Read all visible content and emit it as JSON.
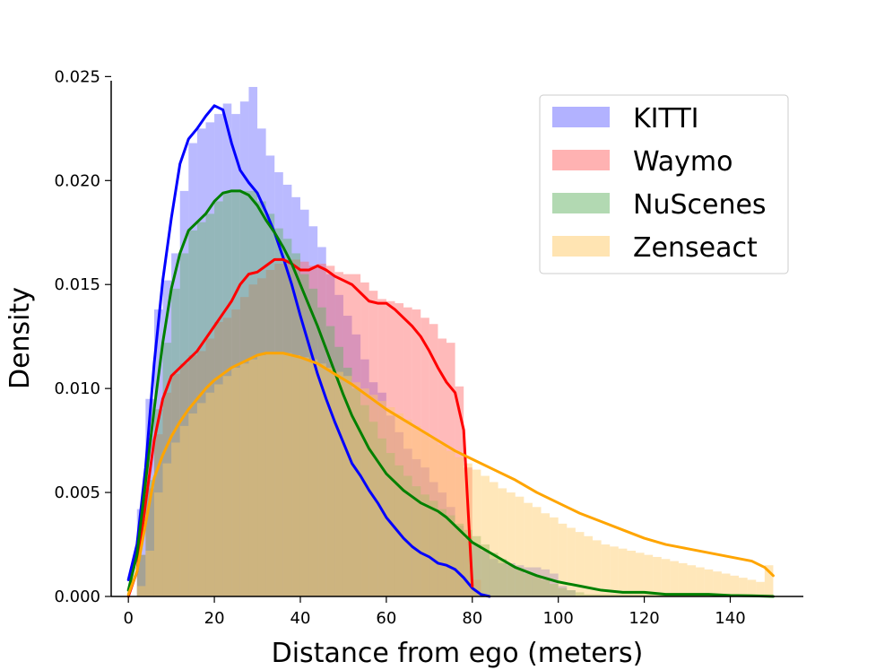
{
  "chart_data": {
    "type": "histogram-kde",
    "title": "",
    "xlabel": "Distance from ego (meters)",
    "ylabel": "Density",
    "xlim": [
      -4,
      157
    ],
    "ylim": [
      0,
      0.0248
    ],
    "x_ticks": [
      0,
      20,
      40,
      60,
      80,
      100,
      120,
      140
    ],
    "x_tick_labels": [
      "0",
      "20",
      "40",
      "60",
      "80",
      "100",
      "120",
      "140"
    ],
    "y_ticks": [
      0.0,
      0.005,
      0.01,
      0.015,
      0.02,
      0.025
    ],
    "y_tick_labels": [
      "0.000",
      "0.005",
      "0.010",
      "0.015",
      "0.020",
      "0.025"
    ],
    "grid": false,
    "legend_position": "top-right",
    "series": [
      {
        "name": "KITTI",
        "color": "#0000ff",
        "fill_color": "#6666ff",
        "hist_bins": {
          "start": 0,
          "width": 2,
          "values": [
            0.0,
            0.0042,
            0.0095,
            0.0138,
            0.0152,
            0.0165,
            0.0195,
            0.0218,
            0.0225,
            0.0228,
            0.0232,
            0.0237,
            0.0232,
            0.0238,
            0.0245,
            0.0225,
            0.0212,
            0.0204,
            0.0198,
            0.0192,
            0.0186,
            0.0178,
            0.0168,
            0.0155,
            0.0145,
            0.0135,
            0.0126,
            0.0114,
            0.0103,
            0.0098,
            0.0087,
            0.0079,
            0.0071,
            0.0066,
            0.0062,
            0.0055,
            0.005,
            0.0043,
            0.0034,
            0.0028,
            0.0025,
            0.0022,
            0.0018,
            0.0016,
            0.0016,
            0.0015,
            0.0014,
            0.0014,
            0.0013,
            0.0011,
            0.0005,
            0.0003
          ]
        },
        "kde": {
          "x": [
            0,
            2,
            4,
            6,
            8,
            10,
            12,
            14,
            16,
            18,
            20,
            22,
            24,
            26,
            28,
            30,
            32,
            34,
            36,
            38,
            40,
            42,
            44,
            46,
            48,
            50,
            52,
            54,
            56,
            58,
            60,
            62,
            64,
            66,
            68,
            70,
            72,
            74,
            76,
            78,
            80,
            82,
            84
          ],
          "y": [
            0.0008,
            0.0025,
            0.0062,
            0.0112,
            0.0152,
            0.0182,
            0.0208,
            0.022,
            0.0225,
            0.0231,
            0.0236,
            0.0234,
            0.0218,
            0.0205,
            0.0199,
            0.0194,
            0.0185,
            0.0175,
            0.0163,
            0.015,
            0.0135,
            0.0121,
            0.0107,
            0.0095,
            0.0084,
            0.0074,
            0.0064,
            0.0058,
            0.0051,
            0.0045,
            0.0038,
            0.0033,
            0.0028,
            0.0024,
            0.0021,
            0.0019,
            0.0016,
            0.0015,
            0.0013,
            0.0009,
            0.0004,
            0.0001,
            0.0
          ]
        }
      },
      {
        "name": "Waymo",
        "color": "#ff0000",
        "fill_color": "#ff6666",
        "hist_bins": {
          "start": 0,
          "width": 2,
          "values": [
            0.0,
            0.002,
            0.0052,
            0.0078,
            0.0098,
            0.0107,
            0.0112,
            0.0116,
            0.0118,
            0.0124,
            0.0132,
            0.0134,
            0.0138,
            0.0144,
            0.015,
            0.0153,
            0.0157,
            0.016,
            0.016,
            0.0162,
            0.0161,
            0.0159,
            0.016,
            0.0159,
            0.0156,
            0.0155,
            0.0155,
            0.0151,
            0.0147,
            0.0143,
            0.0142,
            0.0141,
            0.0139,
            0.0138,
            0.0134,
            0.0131,
            0.0124,
            0.0122,
            0.0101,
            0.0062,
            0.0008
          ]
        },
        "kde": {
          "x": [
            0,
            2,
            4,
            6,
            8,
            10,
            12,
            14,
            16,
            18,
            20,
            22,
            24,
            26,
            28,
            30,
            32,
            34,
            36,
            38,
            40,
            42,
            44,
            46,
            48,
            50,
            52,
            54,
            56,
            58,
            60,
            62,
            64,
            66,
            68,
            70,
            72,
            74,
            76,
            78,
            80
          ],
          "y": [
            0.0,
            0.0012,
            0.0045,
            0.0075,
            0.0095,
            0.0106,
            0.011,
            0.0114,
            0.0118,
            0.0124,
            0.013,
            0.0136,
            0.0142,
            0.015,
            0.0155,
            0.0156,
            0.0159,
            0.0162,
            0.0162,
            0.016,
            0.0157,
            0.0157,
            0.0159,
            0.0157,
            0.0154,
            0.0152,
            0.015,
            0.0146,
            0.0142,
            0.0141,
            0.0141,
            0.0138,
            0.0134,
            0.013,
            0.0125,
            0.0118,
            0.011,
            0.0103,
            0.0098,
            0.008,
            0.0005
          ]
        }
      },
      {
        "name": "NuScenes",
        "color": "#008000",
        "fill_color": "#66b366",
        "hist_bins": {
          "start": 0,
          "width": 2,
          "values": [
            0.0,
            0.002,
            0.0056,
            0.009,
            0.0122,
            0.0148,
            0.0165,
            0.0176,
            0.018,
            0.0184,
            0.019,
            0.0194,
            0.0195,
            0.0195,
            0.0195,
            0.019,
            0.0184,
            0.0177,
            0.0172,
            0.0165,
            0.0155,
            0.0148,
            0.0139,
            0.013,
            0.012,
            0.011,
            0.01,
            0.0092,
            0.0084,
            0.0076,
            0.0069,
            0.0063,
            0.0058,
            0.0053,
            0.0049,
            0.0046,
            0.0042,
            0.0039,
            0.0035,
            0.0032,
            0.0029,
            0.0025,
            0.0021,
            0.0018,
            0.0015,
            0.0013,
            0.0011,
            0.001,
            0.0008,
            0.0006,
            0.0004,
            0.0003,
            0.0002,
            0.0001,
            0.0001,
            0.0001,
            0.0001,
            0.0001,
            0.0001,
            0.0001,
            0.0001,
            0.0001,
            0.0001,
            0.0001,
            0.0001,
            0.0001,
            0.0001,
            0.0001,
            0.0001,
            0.0001,
            0.0001,
            0.0001,
            0.0001,
            0.0001,
            0.0001
          ]
        },
        "kde": {
          "x": [
            0,
            2,
            4,
            6,
            8,
            10,
            12,
            14,
            16,
            18,
            20,
            22,
            24,
            26,
            28,
            30,
            32,
            34,
            36,
            38,
            40,
            42,
            44,
            46,
            48,
            50,
            52,
            54,
            56,
            58,
            60,
            62,
            64,
            66,
            68,
            70,
            72,
            74,
            76,
            78,
            80,
            85,
            90,
            95,
            100,
            105,
            110,
            115,
            120,
            125,
            130,
            135,
            140,
            145,
            150
          ],
          "y": [
            0.0003,
            0.002,
            0.0055,
            0.009,
            0.0122,
            0.0148,
            0.0165,
            0.0176,
            0.018,
            0.0184,
            0.019,
            0.0194,
            0.0195,
            0.0195,
            0.0193,
            0.0188,
            0.0181,
            0.0175,
            0.0168,
            0.016,
            0.015,
            0.014,
            0.013,
            0.0119,
            0.0108,
            0.0097,
            0.0087,
            0.0079,
            0.0071,
            0.0065,
            0.0059,
            0.0055,
            0.0051,
            0.0048,
            0.0045,
            0.0043,
            0.0041,
            0.0038,
            0.0034,
            0.003,
            0.0026,
            0.002,
            0.0014,
            0.001,
            0.0007,
            0.0005,
            0.0003,
            0.0002,
            0.0002,
            0.0001,
            0.0001,
            0.0001,
            5e-05,
            3e-05,
            0.0
          ]
        }
      },
      {
        "name": "Zenseact",
        "color": "#ffa500",
        "fill_color": "#ffc966",
        "hist_bins": {
          "start": 0,
          "width": 2,
          "values": [
            0.0,
            0.0005,
            0.0022,
            0.005,
            0.0064,
            0.0074,
            0.0082,
            0.0088,
            0.0093,
            0.0098,
            0.0102,
            0.0106,
            0.011,
            0.0112,
            0.0114,
            0.0116,
            0.0117,
            0.0117,
            0.0117,
            0.0116,
            0.0115,
            0.0114,
            0.0112,
            0.011,
            0.0108,
            0.0106,
            0.0103,
            0.01,
            0.0097,
            0.0094,
            0.0091,
            0.0088,
            0.0085,
            0.0082,
            0.0079,
            0.0076,
            0.0073,
            0.007,
            0.0067,
            0.0064,
            0.0061,
            0.0058,
            0.0055,
            0.0052,
            0.005,
            0.0048,
            0.0045,
            0.0043,
            0.004,
            0.0038,
            0.0035,
            0.0033,
            0.0031,
            0.0029,
            0.0027,
            0.0025,
            0.0024,
            0.0023,
            0.0022,
            0.0021,
            0.002,
            0.0019,
            0.0018,
            0.0017,
            0.0016,
            0.0015,
            0.0014,
            0.0013,
            0.0012,
            0.0011,
            0.001,
            0.0009,
            0.0008,
            0.0007,
            0.0015
          ]
        },
        "kde": {
          "x": [
            0,
            2,
            4,
            6,
            8,
            10,
            12,
            14,
            16,
            18,
            20,
            22,
            24,
            26,
            28,
            30,
            32,
            34,
            36,
            38,
            40,
            44,
            48,
            52,
            56,
            60,
            64,
            68,
            72,
            76,
            80,
            85,
            90,
            95,
            100,
            105,
            110,
            115,
            120,
            125,
            130,
            135,
            140,
            145,
            148,
            150
          ],
          "y": [
            0.0001,
            0.0012,
            0.0035,
            0.0057,
            0.0068,
            0.0077,
            0.0084,
            0.009,
            0.0095,
            0.01,
            0.0104,
            0.0107,
            0.011,
            0.0112,
            0.0114,
            0.0116,
            0.0117,
            0.0117,
            0.0117,
            0.0116,
            0.0115,
            0.0112,
            0.0107,
            0.0102,
            0.0096,
            0.009,
            0.0085,
            0.008,
            0.0075,
            0.007,
            0.0066,
            0.0061,
            0.0056,
            0.005,
            0.0045,
            0.004,
            0.0036,
            0.0032,
            0.0028,
            0.0025,
            0.0023,
            0.0021,
            0.0019,
            0.0017,
            0.0014,
            0.001
          ]
        }
      }
    ]
  }
}
